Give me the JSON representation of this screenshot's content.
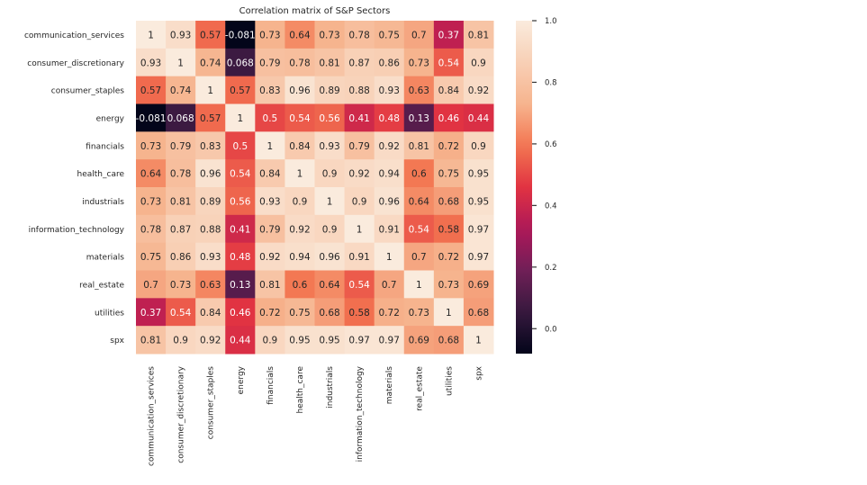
{
  "chart_data": {
    "type": "heatmap",
    "title": "Correlation matrix of S&P Sectors",
    "labels": [
      "communication_services",
      "consumer_discretionary",
      "consumer_staples",
      "energy",
      "financials",
      "health_care",
      "industrials",
      "information_technology",
      "materials",
      "real_estate",
      "utilities",
      "spx"
    ],
    "matrix": [
      [
        1,
        0.93,
        0.57,
        -0.081,
        0.73,
        0.64,
        0.73,
        0.78,
        0.75,
        0.7,
        0.37,
        0.81
      ],
      [
        0.93,
        1,
        0.74,
        0.068,
        0.79,
        0.78,
        0.81,
        0.87,
        0.86,
        0.73,
        0.54,
        0.9
      ],
      [
        0.57,
        0.74,
        1,
        0.57,
        0.83,
        0.96,
        0.89,
        0.88,
        0.93,
        0.63,
        0.84,
        0.92
      ],
      [
        -0.081,
        0.068,
        0.57,
        1,
        0.5,
        0.54,
        0.56,
        0.41,
        0.48,
        0.13,
        0.46,
        0.44
      ],
      [
        0.73,
        0.79,
        0.83,
        0.5,
        1,
        0.84,
        0.93,
        0.79,
        0.92,
        0.81,
        0.72,
        0.9
      ],
      [
        0.64,
        0.78,
        0.96,
        0.54,
        0.84,
        1,
        0.9,
        0.92,
        0.94,
        0.6,
        0.75,
        0.95
      ],
      [
        0.73,
        0.81,
        0.89,
        0.56,
        0.93,
        0.9,
        1,
        0.9,
        0.96,
        0.64,
        0.68,
        0.95
      ],
      [
        0.78,
        0.87,
        0.88,
        0.41,
        0.79,
        0.92,
        0.9,
        1,
        0.91,
        0.54,
        0.58,
        0.97
      ],
      [
        0.75,
        0.86,
        0.93,
        0.48,
        0.92,
        0.94,
        0.96,
        0.91,
        1,
        0.7,
        0.72,
        0.97
      ],
      [
        0.7,
        0.73,
        0.63,
        0.13,
        0.81,
        0.6,
        0.64,
        0.54,
        0.7,
        1,
        0.73,
        0.69
      ],
      [
        0.37,
        0.54,
        0.84,
        0.46,
        0.72,
        0.75,
        0.68,
        0.58,
        0.72,
        0.73,
        1,
        0.68
      ],
      [
        0.81,
        0.9,
        0.92,
        0.44,
        0.9,
        0.95,
        0.95,
        0.97,
        0.97,
        0.69,
        0.68,
        1
      ]
    ],
    "colormap": "rocket",
    "color_range": [
      -0.081,
      1.0
    ],
    "colorbar_ticks": [
      "0.0",
      "0.2",
      "0.4",
      "0.6",
      "0.8",
      "1.0"
    ],
    "annotated": true,
    "legend": "colorbar-right"
  }
}
